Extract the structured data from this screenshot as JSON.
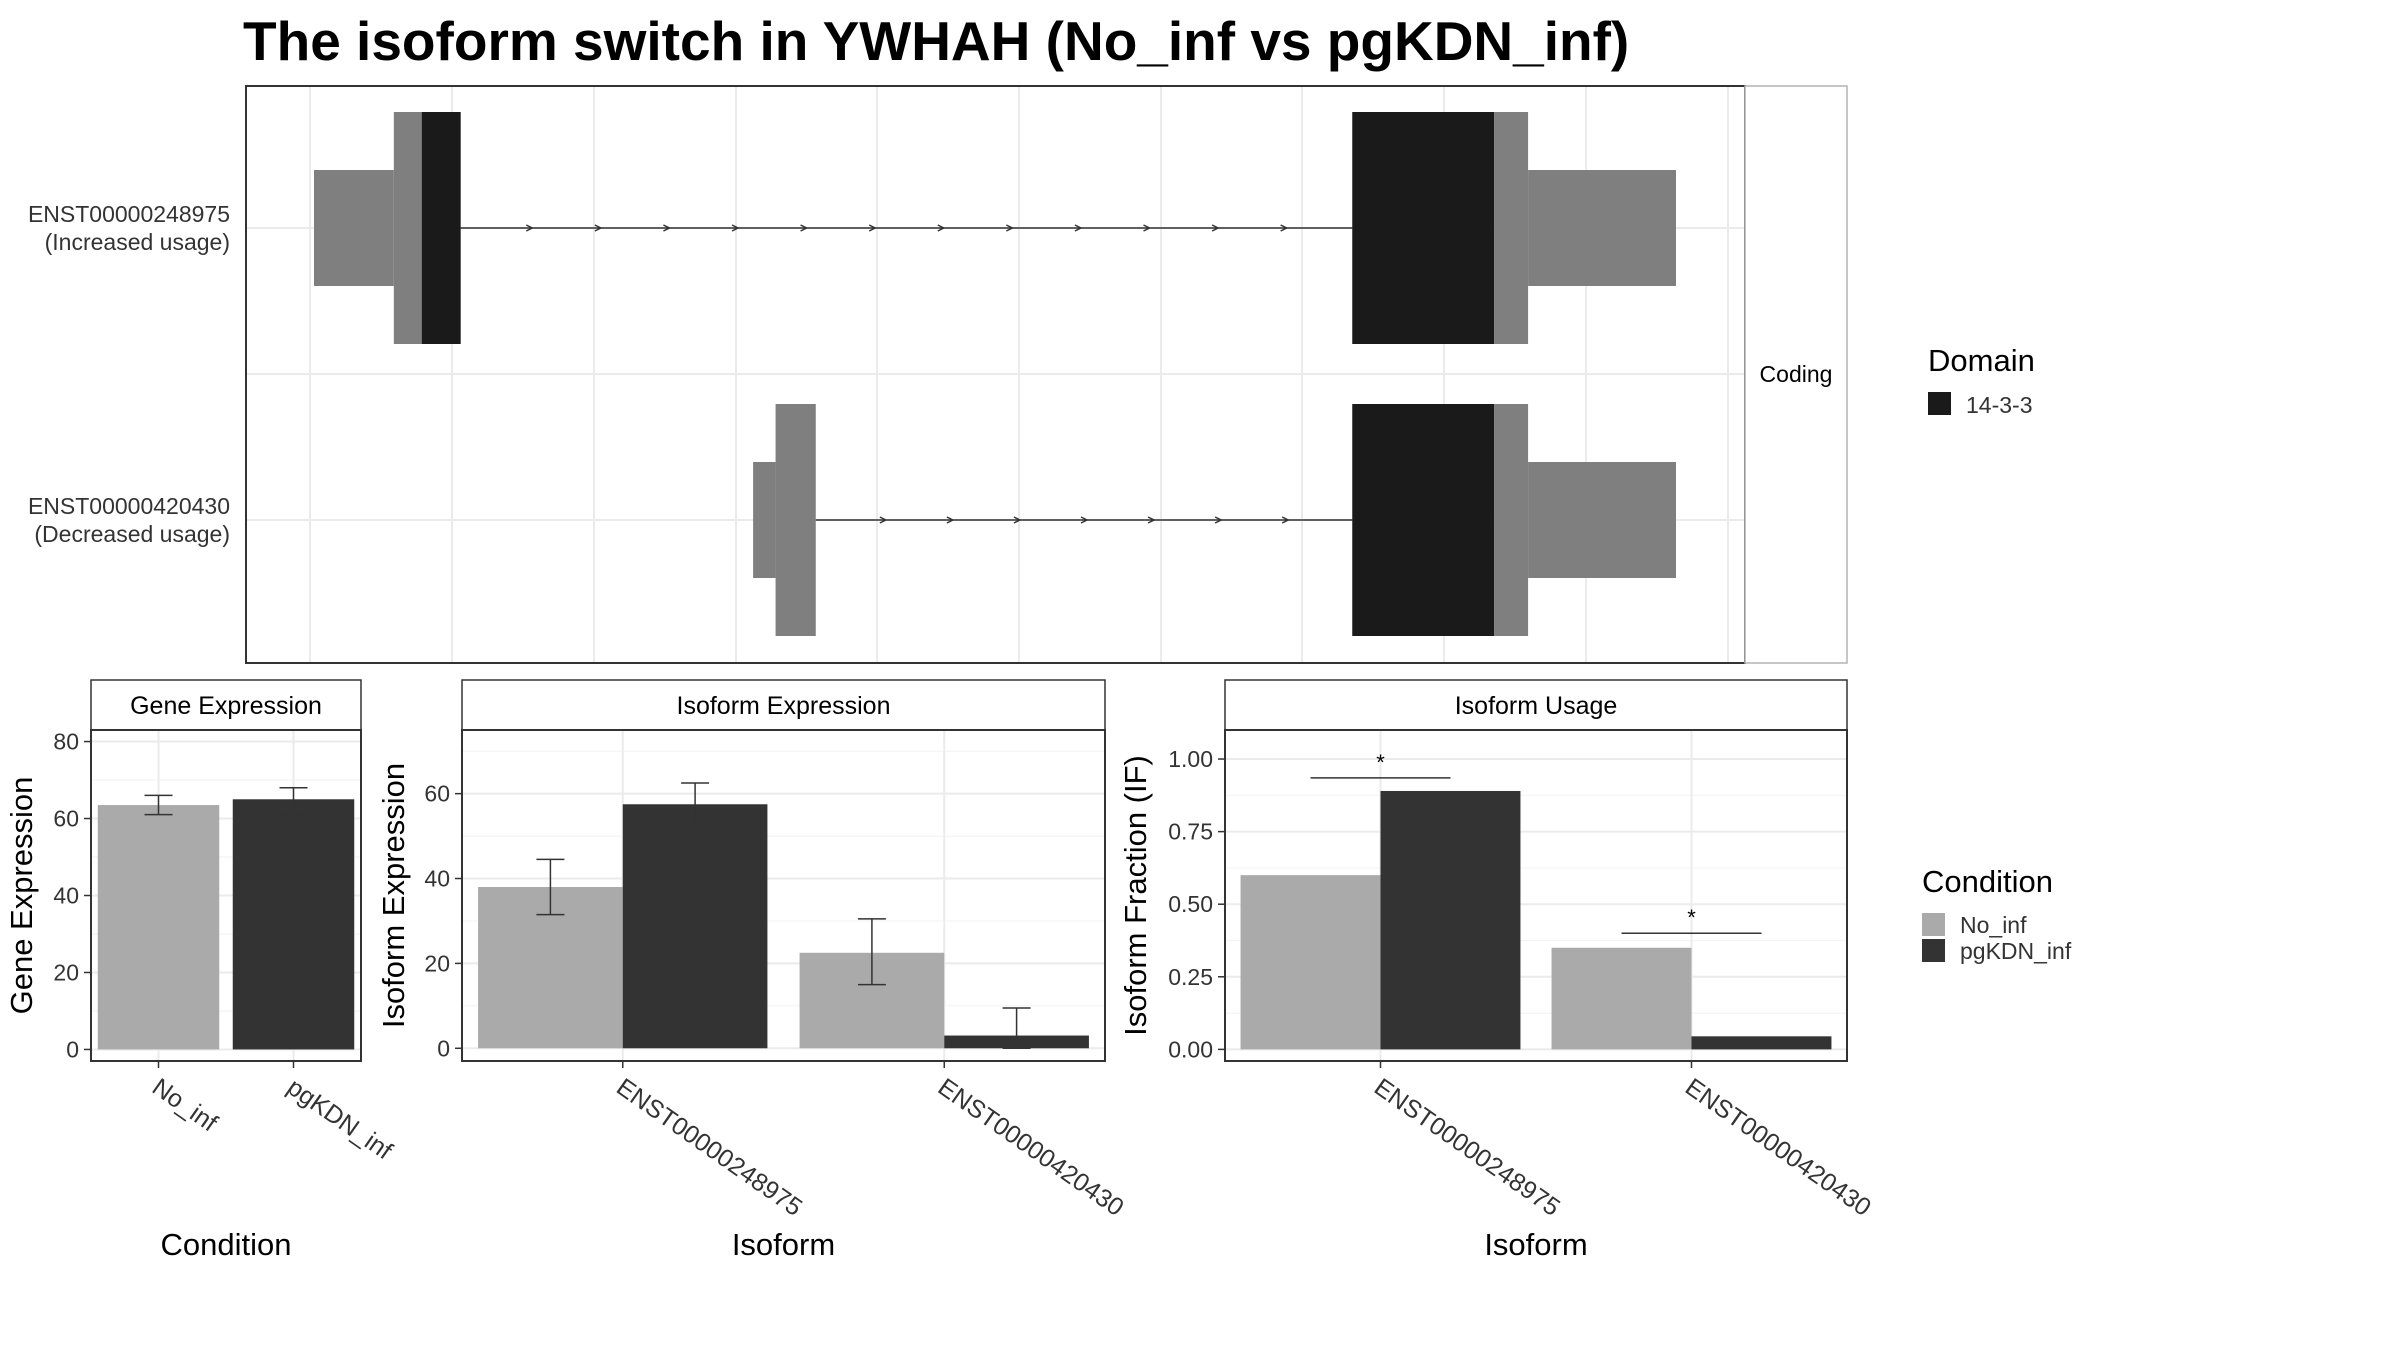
{
  "title": "The isoform switch in YWHAH (No_inf vs pgKDN_inf)",
  "colors": {
    "utr": "#7f7f7f",
    "domain": "#1a1a1a",
    "no_inf": "#aaaaaa",
    "pgkdn_inf": "#333333",
    "grid": "#ebebeb",
    "panel_border": "#333333",
    "strip_border": "#b3b3b3"
  },
  "chart_data": [
    {
      "type": "diagram",
      "name": "transcript-structure",
      "facet_label": "Coding",
      "transcripts": [
        {
          "id": "ENST00000248975",
          "label_line1": "ENST00000248975",
          "label_line2": "(Increased usage)",
          "exons": [
            {
              "start": 0,
              "end": 0.0586,
              "type": "utr_thin"
            },
            {
              "start": 0.0586,
              "end": 0.0791,
              "type": "cds"
            },
            {
              "start": 0.0791,
              "end": 0.1077,
              "type": "domain"
            },
            {
              "start": 0.7623,
              "end": 0.8664,
              "type": "domain"
            },
            {
              "start": 0.8664,
              "end": 0.8914,
              "type": "cds"
            },
            {
              "start": 0.8914,
              "end": 1.0,
              "type": "utr_thin"
            }
          ],
          "intron": [
            0.1077,
            0.7623
          ]
        },
        {
          "id": "ENST00000420430",
          "label_line1": "ENST00000420430",
          "label_line2": "(Decreased usage)",
          "exons": [
            {
              "start": 0.3224,
              "end": 0.3389,
              "type": "utr_thin"
            },
            {
              "start": 0.3389,
              "end": 0.3684,
              "type": "cds"
            },
            {
              "start": 0.7623,
              "end": 0.8664,
              "type": "domain"
            },
            {
              "start": 0.8664,
              "end": 0.8914,
              "type": "cds"
            },
            {
              "start": 0.8914,
              "end": 1.0,
              "type": "utr_thin"
            }
          ],
          "intron": [
            0.3684,
            0.7623
          ]
        }
      ],
      "legend": {
        "title": "Domain",
        "items": [
          {
            "label": "14-3-3",
            "color": "#1a1a1a"
          }
        ]
      }
    },
    {
      "type": "bar",
      "name": "gene-expression",
      "facet_label": "Gene Expression",
      "categories": [
        "No_inf",
        "pgKDN_inf"
      ],
      "values": [
        63.5,
        65
      ],
      "errors": [
        [
          61,
          66
        ],
        [
          61,
          68
        ]
      ],
      "colors": [
        "#aaaaaa",
        "#333333"
      ],
      "xlabel": "Condition",
      "ylabel": "Gene Expression",
      "ylim": [
        -3,
        83
      ],
      "yticks": [
        0,
        20,
        40,
        60,
        80
      ]
    },
    {
      "type": "bar",
      "name": "isoform-expression",
      "facet_label": "Isoform Expression",
      "categories": [
        "ENST00000248975",
        "ENST00000420430"
      ],
      "series": [
        {
          "condition": "No_inf",
          "values": [
            38,
            22.5
          ],
          "errors": [
            [
              31.5,
              44.5
            ],
            [
              15,
              30.5
            ]
          ]
        },
        {
          "condition": "pgKDN_inf",
          "values": [
            57.5,
            3
          ],
          "errors": [
            [
              53,
              62.5
            ],
            [
              0,
              9.5
            ]
          ]
        }
      ],
      "xlabel": "Isoform",
      "ylabel": "Isoform Expression",
      "ylim": [
        -3,
        75
      ],
      "yticks": [
        0,
        20,
        40,
        60
      ]
    },
    {
      "type": "bar",
      "name": "isoform-usage",
      "facet_label": "Isoform Usage",
      "categories": [
        "ENST00000248975",
        "ENST00000420430"
      ],
      "series": [
        {
          "condition": "No_inf",
          "values": [
            0.6,
            0.35
          ]
        },
        {
          "condition": "pgKDN_inf",
          "values": [
            0.89,
            0.045
          ]
        }
      ],
      "significance": [
        {
          "category_index": 0,
          "y": 0.935,
          "label": "*"
        },
        {
          "category_index": 1,
          "y": 0.4,
          "label": "*"
        }
      ],
      "xlabel": "Isoform",
      "ylabel": "Isoform Fraction (IF)",
      "ylim": [
        -0.04,
        1.1
      ],
      "yticks": [
        "0.00",
        "0.25",
        "0.50",
        "0.75",
        "1.00"
      ]
    }
  ],
  "condition_legend": {
    "title": "Condition",
    "items": [
      {
        "label": "No_inf",
        "color": "#aaaaaa"
      },
      {
        "label": "pgKDN_inf",
        "color": "#333333"
      }
    ]
  }
}
